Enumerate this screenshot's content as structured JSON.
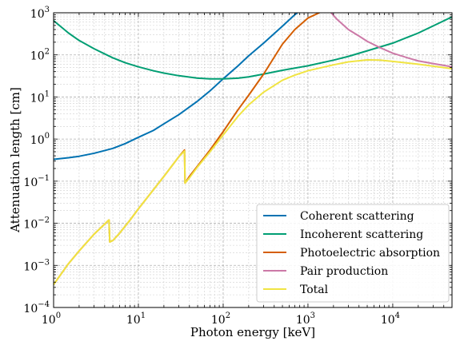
{
  "chart_data": {
    "type": "line",
    "title": "",
    "xlabel": "Photon energy [keV]",
    "ylabel": "Attenuation length [cm]",
    "xscale": "log",
    "yscale": "log",
    "xlim": [
      1,
      50000
    ],
    "ylim": [
      0.0001,
      1000
    ],
    "grid": true,
    "legend_position": "bottom-right",
    "x_ticks": [
      {
        "base": "10",
        "exp": "0",
        "value": 1
      },
      {
        "base": "10",
        "exp": "1",
        "value": 10
      },
      {
        "base": "10",
        "exp": "2",
        "value": 100
      },
      {
        "base": "10",
        "exp": "3",
        "value": 1000
      },
      {
        "base": "10",
        "exp": "4",
        "value": 10000
      }
    ],
    "y_ticks": [
      {
        "base": "10",
        "exp": "−4",
        "value": 0.0001
      },
      {
        "base": "10",
        "exp": "−3",
        "value": 0.001
      },
      {
        "base": "10",
        "exp": "−2",
        "value": 0.01
      },
      {
        "base": "10",
        "exp": "−1",
        "value": 0.1
      },
      {
        "base": "10",
        "exp": "0",
        "value": 1
      },
      {
        "base": "10",
        "exp": "1",
        "value": 10
      },
      {
        "base": "10",
        "exp": "2",
        "value": 100
      },
      {
        "base": "10",
        "exp": "3",
        "value": 1000
      }
    ],
    "series": [
      {
        "name": "Coherent scattering",
        "color": "#0072B2",
        "points": [
          [
            1,
            0.33
          ],
          [
            1.5,
            0.36
          ],
          [
            2,
            0.39
          ],
          [
            3,
            0.46
          ],
          [
            5,
            0.6
          ],
          [
            7,
            0.78
          ],
          [
            10,
            1.1
          ],
          [
            15,
            1.6
          ],
          [
            20,
            2.3
          ],
          [
            30,
            3.8
          ],
          [
            50,
            8
          ],
          [
            70,
            14
          ],
          [
            100,
            27
          ],
          [
            150,
            55
          ],
          [
            200,
            95
          ],
          [
            300,
            190
          ],
          [
            500,
            480
          ],
          [
            700,
            900
          ],
          [
            800,
            1100
          ]
        ]
      },
      {
        "name": "Incoherent scattering",
        "color": "#009E73",
        "points": [
          [
            1,
            650
          ],
          [
            1.5,
            330
          ],
          [
            2,
            220
          ],
          [
            3,
            140
          ],
          [
            5,
            85
          ],
          [
            7,
            65
          ],
          [
            10,
            52
          ],
          [
            15,
            42
          ],
          [
            20,
            37
          ],
          [
            30,
            32
          ],
          [
            50,
            28
          ],
          [
            70,
            27
          ],
          [
            100,
            27
          ],
          [
            150,
            28
          ],
          [
            200,
            30
          ],
          [
            300,
            35
          ],
          [
            500,
            43
          ],
          [
            1000,
            55
          ],
          [
            2000,
            75
          ],
          [
            3000,
            92
          ],
          [
            5000,
            125
          ],
          [
            10000,
            190
          ],
          [
            20000,
            330
          ],
          [
            50000,
            800
          ]
        ]
      },
      {
        "name": "Photoelectric absorption",
        "color": "#D55E00",
        "points": [
          [
            1,
            0.00035
          ],
          [
            1.5,
            0.0011
          ],
          [
            2,
            0.0022
          ],
          [
            3,
            0.0055
          ],
          [
            4.5,
            0.012
          ],
          [
            4.6,
            0.0036
          ],
          [
            5,
            0.0039
          ],
          [
            6,
            0.0058
          ],
          [
            8,
            0.012
          ],
          [
            10,
            0.022
          ],
          [
            15,
            0.062
          ],
          [
            20,
            0.13
          ],
          [
            30,
            0.38
          ],
          [
            35,
            0.55
          ],
          [
            35.5,
            0.09
          ],
          [
            40,
            0.13
          ],
          [
            50,
            0.23
          ],
          [
            70,
            0.55
          ],
          [
            100,
            1.5
          ],
          [
            150,
            5
          ],
          [
            200,
            11
          ],
          [
            300,
            35
          ],
          [
            500,
            180
          ],
          [
            700,
            400
          ],
          [
            1000,
            750
          ],
          [
            1500,
            1100
          ]
        ]
      },
      {
        "name": "Pair production",
        "color": "#CC79A7",
        "points": [
          [
            1800,
            1100
          ],
          [
            2200,
            700
          ],
          [
            3000,
            400
          ],
          [
            4000,
            280
          ],
          [
            5000,
            210
          ],
          [
            7000,
            150
          ],
          [
            10000,
            110
          ],
          [
            15000,
            85
          ],
          [
            20000,
            72
          ],
          [
            30000,
            62
          ],
          [
            50000,
            52
          ]
        ]
      },
      {
        "name": "Total",
        "color": "#F0E442",
        "points": [
          [
            1,
            0.00035
          ],
          [
            1.5,
            0.0011
          ],
          [
            2,
            0.0022
          ],
          [
            3,
            0.0055
          ],
          [
            4.5,
            0.012
          ],
          [
            4.6,
            0.0036
          ],
          [
            5,
            0.0039
          ],
          [
            6,
            0.0058
          ],
          [
            8,
            0.012
          ],
          [
            10,
            0.022
          ],
          [
            15,
            0.062
          ],
          [
            20,
            0.13
          ],
          [
            30,
            0.38
          ],
          [
            35,
            0.52
          ],
          [
            35.5,
            0.09
          ],
          [
            40,
            0.12
          ],
          [
            50,
            0.22
          ],
          [
            70,
            0.5
          ],
          [
            100,
            1.25
          ],
          [
            150,
            3.5
          ],
          [
            200,
            6.5
          ],
          [
            300,
            13
          ],
          [
            500,
            25
          ],
          [
            700,
            33
          ],
          [
            1000,
            42
          ],
          [
            2000,
            58
          ],
          [
            3000,
            68
          ],
          [
            5000,
            76
          ],
          [
            7000,
            75
          ],
          [
            10000,
            70
          ],
          [
            20000,
            60
          ],
          [
            50000,
            47
          ]
        ]
      }
    ]
  }
}
